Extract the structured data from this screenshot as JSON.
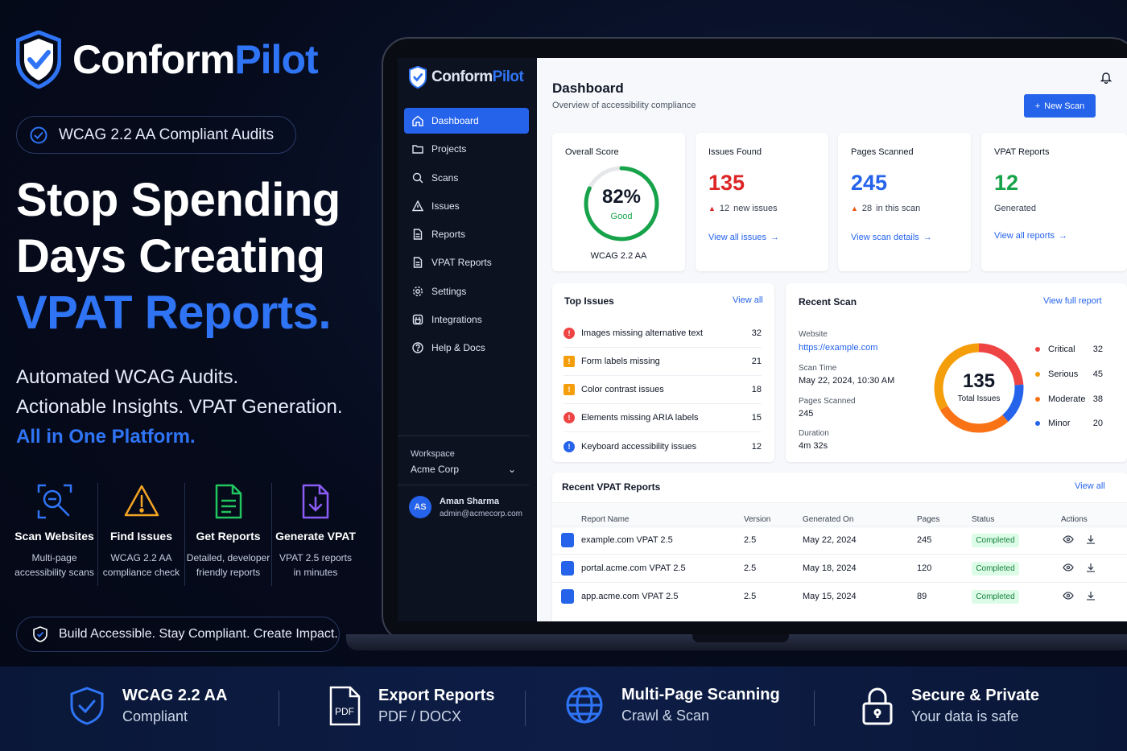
{
  "brand": {
    "name_a": "Conform",
    "name_b": "Pilot"
  },
  "hero": {
    "pill": "WCAG 2.2 AA Compliant Audits",
    "line1": "Stop Spending",
    "line2": "Days Creating",
    "line3": "VPAT Reports.",
    "sub1": "Automated WCAG Audits.",
    "sub2": "Actionable Insights. VPAT Generation.",
    "sub3": "All in One Platform.",
    "features": [
      {
        "title": "Scan Websites",
        "d1": "Multi-page",
        "d2": "accessibility scans"
      },
      {
        "title": "Find Issues",
        "d1": "WCAG 2.2 AA",
        "d2": "compliance check"
      },
      {
        "title": "Get Reports",
        "d1": "Detailed, developer",
        "d2": "friendly reports"
      },
      {
        "title": "Generate VPAT",
        "d1": "VPAT 2.5 reports",
        "d2": "in minutes"
      }
    ],
    "tagline": "Build Accessible. Stay Compliant. Create Impact."
  },
  "sidebar": {
    "items": [
      {
        "label": "Dashboard"
      },
      {
        "label": "Projects"
      },
      {
        "label": "Scans"
      },
      {
        "label": "Issues"
      },
      {
        "label": "Reports"
      },
      {
        "label": "VPAT Reports"
      },
      {
        "label": "Settings"
      },
      {
        "label": "Integrations"
      },
      {
        "label": "Help & Docs"
      }
    ],
    "workspace_label": "Workspace",
    "workspace": "Acme Corp",
    "user_initials": "AS",
    "user_name": "Aman Sharma",
    "user_email": "admin@acmecorp.com"
  },
  "dashboard": {
    "title": "Dashboard",
    "subtitle": "Overview of accessibility compliance",
    "new_scan": "New Scan",
    "score": {
      "label": "Overall Score",
      "value": "82%",
      "fraction": 0.82,
      "rating": "Good",
      "standard": "WCAG 2.2 AA"
    },
    "issues": {
      "label": "Issues Found",
      "value": "135",
      "meta_n": "12",
      "meta": "new issues",
      "link": "View all issues"
    },
    "pages": {
      "label": "Pages Scanned",
      "value": "245",
      "meta_n": "28",
      "meta": "in this scan",
      "link": "View scan details"
    },
    "vpat": {
      "label": "VPAT Reports",
      "value": "12",
      "meta": "Generated",
      "link": "View all reports"
    },
    "top_issues": {
      "title": "Top Issues",
      "link": "View all",
      "rows": [
        {
          "name": "Images missing alternative text",
          "count": "32",
          "level": "error"
        },
        {
          "name": "Form labels missing",
          "count": "21",
          "level": "warning"
        },
        {
          "name": "Color contrast issues",
          "count": "18",
          "level": "warning"
        },
        {
          "name": "Elements missing ARIA labels",
          "count": "15",
          "level": "error"
        },
        {
          "name": "Keyboard accessibility issues",
          "count": "12",
          "level": "info"
        }
      ]
    },
    "recent_scan": {
      "title": "Recent Scan",
      "link": "View full report",
      "website_label": "Website",
      "website": "https://example.com",
      "time_label": "Scan Time",
      "time": "May 22, 2024, 10:30 AM",
      "pages_label": "Pages Scanned",
      "pages": "245",
      "duration_label": "Duration",
      "duration": "4m 32s",
      "total": "135",
      "total_label": "Total Issues",
      "breakdown": [
        {
          "label": "Critical",
          "value": 32,
          "color": "#ef4444"
        },
        {
          "label": "Serious",
          "value": 45,
          "color": "#f59e0b"
        },
        {
          "label": "Moderate",
          "value": 38,
          "color": "#f97316"
        },
        {
          "label": "Minor",
          "value": 20,
          "color": "#2563eb"
        }
      ]
    },
    "vpat_table": {
      "title": "Recent VPAT Reports",
      "link": "View all",
      "headers": [
        "Report Name",
        "Version",
        "Generated On",
        "Pages",
        "Status",
        "Actions"
      ],
      "rows": [
        {
          "name": "example.com VPAT 2.5",
          "version": "2.5",
          "date": "May 22, 2024",
          "pages": "245",
          "status": "Completed"
        },
        {
          "name": "portal.acme.com VPAT 2.5",
          "version": "2.5",
          "date": "May 18, 2024",
          "pages": "120",
          "status": "Completed"
        },
        {
          "name": "app.acme.com VPAT 2.5",
          "version": "2.5",
          "date": "May 15, 2024",
          "pages": "89",
          "status": "Completed"
        }
      ]
    }
  },
  "strip": [
    {
      "title": "WCAG 2.2 AA",
      "desc": "Compliant"
    },
    {
      "title": "Export Reports",
      "desc": "PDF / DOCX",
      "icon_text": "PDF"
    },
    {
      "title": "Multi-Page Scanning",
      "desc": "Crawl & Scan"
    },
    {
      "title": "Secure & Private",
      "desc": "Your data is safe"
    }
  ],
  "colors": {
    "accent": "#2f74f5",
    "primary": "#2563eb",
    "error": "#ef4444",
    "warning": "#f59e0b",
    "success": "#16a34a"
  }
}
